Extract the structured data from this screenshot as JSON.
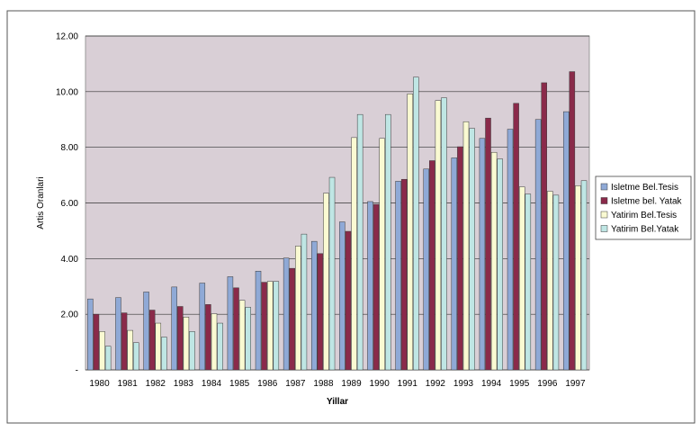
{
  "chart_data": {
    "type": "bar",
    "title": "",
    "xlabel": "Yillar",
    "ylabel": "Artis Oranlari",
    "ylim": [
      0,
      12
    ],
    "yticks": [
      "-",
      "2.00",
      "4.00",
      "6.00",
      "8.00",
      "10.00",
      "12.00"
    ],
    "grid": true,
    "legend_position": "right",
    "categories": [
      "1980",
      "1981",
      "1982",
      "1983",
      "1984",
      "1985",
      "1986",
      "1987",
      "1988",
      "1989",
      "1990",
      "1991",
      "1992",
      "1993",
      "1994",
      "1995",
      "1996",
      "1997"
    ],
    "series": [
      {
        "name": "Isletme Bel.Tesis",
        "color": "#8fa9d6",
        "values": [
          2.55,
          2.6,
          2.8,
          2.98,
          3.12,
          3.35,
          3.55,
          4.02,
          4.62,
          5.32,
          6.05,
          6.78,
          7.22,
          7.62,
          8.32,
          8.65,
          9.0,
          9.28
        ]
      },
      {
        "name": "Isletme bel. Yatak",
        "color": "#8a2a4a",
        "values": [
          2.0,
          2.05,
          2.15,
          2.28,
          2.35,
          2.95,
          3.15,
          3.65,
          4.18,
          4.98,
          5.95,
          6.85,
          7.52,
          8.02,
          9.05,
          9.58,
          10.32,
          10.72
        ]
      },
      {
        "name": "Yatirim Bel.Tesis",
        "color": "#fafad2",
        "values": [
          1.38,
          1.42,
          1.68,
          1.9,
          2.02,
          2.5,
          3.18,
          4.45,
          6.35,
          8.35,
          8.32,
          9.92,
          9.68,
          8.92,
          7.82,
          6.58,
          6.42,
          6.62
        ]
      },
      {
        "name": "Yatirim Bel.Yatak",
        "color": "#bfe6e4",
        "values": [
          0.85,
          0.98,
          1.18,
          1.38,
          1.68,
          2.25,
          3.18,
          4.88,
          6.92,
          9.18,
          9.18,
          10.52,
          9.78,
          8.68,
          7.58,
          6.32,
          6.28,
          6.8
        ]
      }
    ]
  }
}
